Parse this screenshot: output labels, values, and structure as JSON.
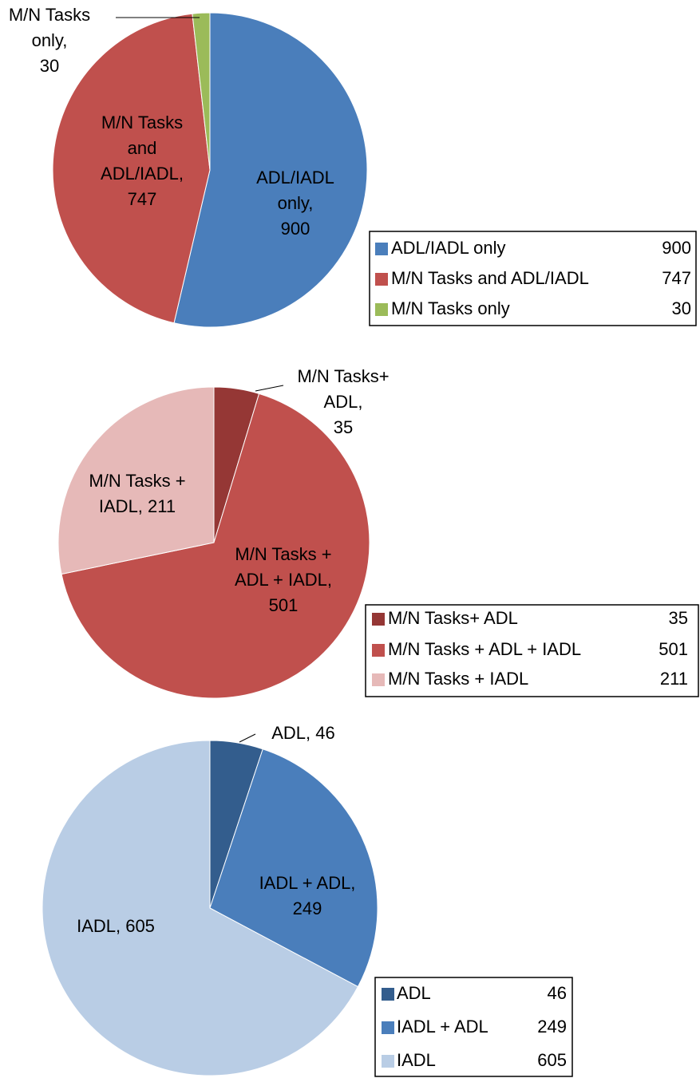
{
  "chart_data": [
    {
      "type": "pie",
      "categories": [
        "ADL/IADL only",
        "M/N Tasks and ADL/IADL",
        "M/N Tasks only"
      ],
      "values": [
        900,
        747,
        30
      ],
      "value_labels": [
        [
          "ADL/IADL",
          "only,",
          "900"
        ],
        [
          "M/N Tasks",
          "and",
          "ADL/IADL,",
          "747"
        ],
        [
          "M/N Tasks",
          "only,",
          "30"
        ]
      ],
      "colors": [
        "#4a7ebb",
        "#c0504d",
        "#9bbb59"
      ]
    },
    {
      "type": "pie",
      "categories": [
        "M/N Tasks+ ADL",
        "M/N Tasks + ADL + IADL",
        "M/N Tasks + IADL"
      ],
      "values": [
        35,
        501,
        211
      ],
      "value_labels": [
        [
          "M/N Tasks+",
          "ADL,",
          "35"
        ],
        [
          "M/N Tasks +",
          "ADL + IADL,",
          "501"
        ],
        [
          "M/N Tasks +",
          "IADL, 211"
        ]
      ],
      "colors": [
        "#953735",
        "#c0504d",
        "#e6b9b8"
      ]
    },
    {
      "type": "pie",
      "categories": [
        "ADL",
        "IADL + ADL",
        "IADL"
      ],
      "values": [
        46,
        249,
        605
      ],
      "value_labels": [
        [
          "ADL, 46"
        ],
        [
          "IADL + ADL,",
          "249"
        ],
        [
          "IADL, 605"
        ]
      ],
      "colors": [
        "#335d8d",
        "#4a7ebb",
        "#b9cde5"
      ]
    }
  ]
}
